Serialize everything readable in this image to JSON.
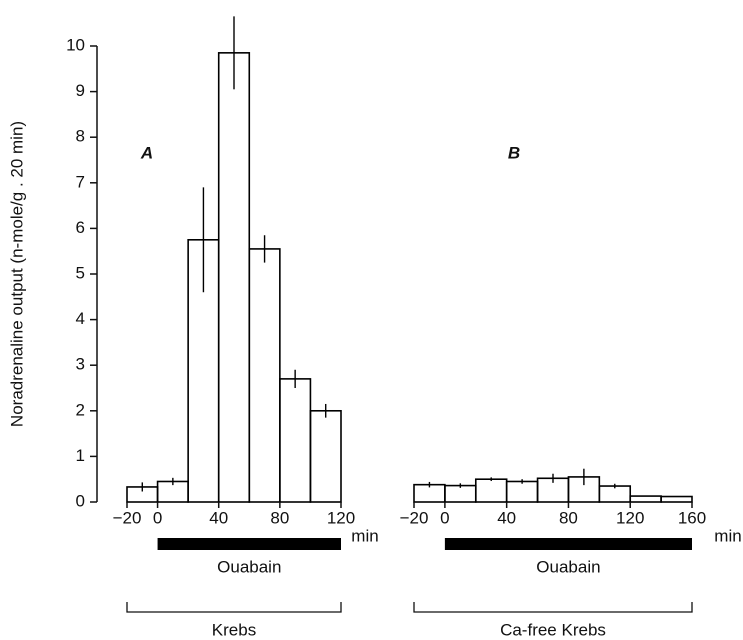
{
  "chart_data": [
    {
      "type": "histogram",
      "panel": "A",
      "ylabel": "Noradrenaline output (n-mole/g . 20 min)",
      "bins": [
        -20,
        0,
        20,
        40,
        60,
        80,
        100,
        120
      ],
      "values": [
        0.33,
        0.45,
        5.75,
        9.85,
        5.55,
        2.7,
        2.0
      ],
      "errors": [
        0.1,
        0.08,
        1.15,
        0.8,
        0.3,
        0.2,
        0.15
      ],
      "xlim": [
        -20,
        120
      ],
      "xticks": [
        {
          "value": -20,
          "label": "−20"
        },
        0,
        40,
        80,
        120
      ],
      "xlabel": "min",
      "ylim": [
        0,
        10
      ],
      "yticks": [
        0,
        1,
        2,
        3,
        4,
        5,
        6,
        7,
        8,
        9,
        10
      ],
      "treatment": {
        "label": "Ouabain",
        "start": 0,
        "end": 120
      },
      "medium": "Krebs",
      "color": "#000000"
    },
    {
      "type": "histogram",
      "panel": "B",
      "bins": [
        -20,
        0,
        20,
        40,
        60,
        80,
        100,
        120,
        140,
        160
      ],
      "values": [
        0.38,
        0.36,
        0.5,
        0.45,
        0.52,
        0.55,
        0.35,
        0.13,
        0.12
      ],
      "errors": [
        0.06,
        0.05,
        0.04,
        0.05,
        0.1,
        0.18,
        0.05,
        0,
        0
      ],
      "xlim": [
        -20,
        160
      ],
      "xticks": [
        {
          "value": -20,
          "label": "−20"
        },
        0,
        40,
        80,
        120,
        160
      ],
      "xlabel": "min",
      "ylim": [
        0,
        10
      ],
      "treatment": {
        "label": "Ouabain",
        "start": 0,
        "end": 160
      },
      "medium": "Ca-free Krebs",
      "color": "#000000"
    }
  ]
}
